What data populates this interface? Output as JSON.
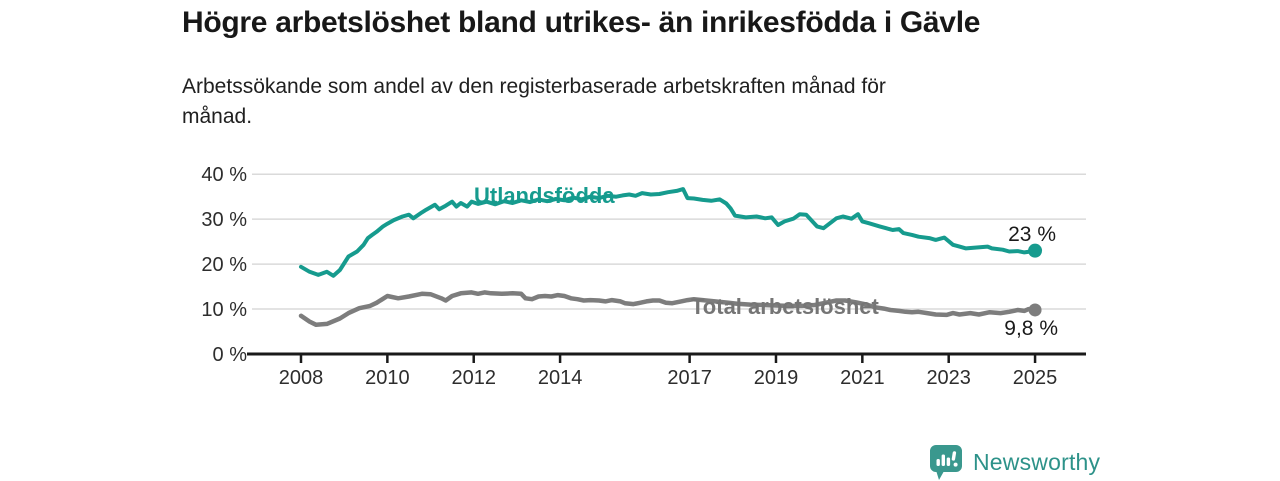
{
  "header": {
    "title": "Högre arbetslöshet bland utrikes- än inrikesfödda i Gävle",
    "subtitle_lines": [
      "Arbetssökande som andel av den registerbaserade arbetskraften månad för",
      "månad."
    ]
  },
  "chart_data": {
    "type": "line",
    "title": "Högre arbetslöshet bland utrikes- än inrikesfödda i Gävle",
    "subtitle": "Arbetssökande som andel av den registerbaserade arbetskraften månad för månad.",
    "unit": "%",
    "grid": "horizontal",
    "legend_position": "inline-labels",
    "xlim": [
      2006.9,
      2026.2
    ],
    "ylim": [
      0,
      40
    ],
    "x_ticks": [
      2008,
      2010,
      2012,
      2014,
      2017,
      2019,
      2021,
      2023,
      2025
    ],
    "x_tick_labels": [
      "2008",
      "2010",
      "2012",
      "2014",
      "2017",
      "2019",
      "2021",
      "2023",
      "2025"
    ],
    "y_ticks": [
      0,
      10,
      20,
      30,
      40
    ],
    "y_tick_labels": [
      "0 %",
      "10 %",
      "20 %",
      "30 %",
      "40 %"
    ],
    "series": [
      {
        "name": "Utlandsfödda",
        "color": "#169b8e",
        "end_label": "23 %",
        "end_value": 23,
        "points": [
          [
            2008,
            19.4
          ],
          [
            2008.2,
            18.3
          ],
          [
            2008.4,
            17.6
          ],
          [
            2008.6,
            18.3
          ],
          [
            2008.75,
            17.4
          ],
          [
            2008.9,
            18.7
          ],
          [
            2009.1,
            21.7
          ],
          [
            2009.3,
            22.8
          ],
          [
            2009.45,
            24.3
          ],
          [
            2009.55,
            25.8
          ],
          [
            2009.65,
            26.5
          ],
          [
            2009.75,
            27.2
          ],
          [
            2009.9,
            28.4
          ],
          [
            2010,
            29
          ],
          [
            2010.15,
            29.8
          ],
          [
            2010.35,
            30.6
          ],
          [
            2010.5,
            31
          ],
          [
            2010.6,
            30.2
          ],
          [
            2010.8,
            31.5
          ],
          [
            2010.9,
            32.1
          ],
          [
            2011.1,
            33.2
          ],
          [
            2011.2,
            32.2
          ],
          [
            2011.35,
            33
          ],
          [
            2011.5,
            33.9
          ],
          [
            2011.6,
            32.8
          ],
          [
            2011.7,
            33.6
          ],
          [
            2011.85,
            32.8
          ],
          [
            2011.95,
            33.9
          ],
          [
            2012.1,
            33.4
          ],
          [
            2012.3,
            33.9
          ],
          [
            2012.5,
            33.3
          ],
          [
            2012.7,
            34
          ],
          [
            2012.9,
            33.6
          ],
          [
            2013.1,
            34.2
          ],
          [
            2013.3,
            33.8
          ],
          [
            2013.5,
            34.4
          ],
          [
            2013.7,
            34
          ],
          [
            2013.9,
            34.5
          ],
          [
            2014.1,
            34.2
          ],
          [
            2014.3,
            34.8
          ],
          [
            2014.5,
            34.4
          ],
          [
            2014.7,
            35
          ],
          [
            2014.9,
            34.7
          ],
          [
            2015.1,
            35.2
          ],
          [
            2015.3,
            35
          ],
          [
            2015.45,
            35.3
          ],
          [
            2015.6,
            35.5
          ],
          [
            2015.75,
            35.2
          ],
          [
            2015.9,
            35.8
          ],
          [
            2016.1,
            35.5
          ],
          [
            2016.3,
            35.6
          ],
          [
            2016.5,
            36
          ],
          [
            2016.7,
            36.3
          ],
          [
            2016.85,
            36.7
          ],
          [
            2016.95,
            34.7
          ],
          [
            2017.1,
            34.6
          ],
          [
            2017.3,
            34.3
          ],
          [
            2017.5,
            34.1
          ],
          [
            2017.7,
            34.4
          ],
          [
            2017.85,
            33.5
          ],
          [
            2017.95,
            32.4
          ],
          [
            2018.05,
            30.8
          ],
          [
            2018.3,
            30.4
          ],
          [
            2018.55,
            30.6
          ],
          [
            2018.75,
            30.2
          ],
          [
            2018.9,
            30.4
          ],
          [
            2019.05,
            28.7
          ],
          [
            2019.2,
            29.5
          ],
          [
            2019.4,
            30.1
          ],
          [
            2019.55,
            31.1
          ],
          [
            2019.7,
            31
          ],
          [
            2019.95,
            28.4
          ],
          [
            2020.1,
            28
          ],
          [
            2020.4,
            30.2
          ],
          [
            2020.55,
            30.6
          ],
          [
            2020.75,
            30.1
          ],
          [
            2020.9,
            31.1
          ],
          [
            2021,
            29.5
          ],
          [
            2021.15,
            29.1
          ],
          [
            2021.4,
            28.4
          ],
          [
            2021.55,
            28
          ],
          [
            2021.7,
            27.6
          ],
          [
            2021.85,
            27.8
          ],
          [
            2021.95,
            26.9
          ],
          [
            2022.15,
            26.5
          ],
          [
            2022.3,
            26.1
          ],
          [
            2022.55,
            25.8
          ],
          [
            2022.7,
            25.4
          ],
          [
            2022.9,
            25.9
          ],
          [
            2023.1,
            24.3
          ],
          [
            2023.25,
            23.9
          ],
          [
            2023.4,
            23.5
          ],
          [
            2023.65,
            23.7
          ],
          [
            2023.9,
            23.9
          ],
          [
            2024,
            23.5
          ],
          [
            2024.25,
            23.2
          ],
          [
            2024.4,
            22.8
          ],
          [
            2024.6,
            22.9
          ],
          [
            2024.75,
            22.6
          ],
          [
            2024.9,
            22.8
          ],
          [
            2025,
            23
          ]
        ]
      },
      {
        "name": "Total arbetslöshet",
        "color": "#7d7d7d",
        "end_label": "9,8 %",
        "end_value": 9.8,
        "points": [
          [
            2008,
            8.5
          ],
          [
            2008.2,
            7.2
          ],
          [
            2008.35,
            6.5
          ],
          [
            2008.6,
            6.7
          ],
          [
            2008.9,
            7.9
          ],
          [
            2009.1,
            9.1
          ],
          [
            2009.35,
            10.2
          ],
          [
            2009.6,
            10.7
          ],
          [
            2009.75,
            11.4
          ],
          [
            2010,
            12.9
          ],
          [
            2010.25,
            12.4
          ],
          [
            2010.5,
            12.8
          ],
          [
            2010.8,
            13.4
          ],
          [
            2011,
            13.3
          ],
          [
            2011.25,
            12.4
          ],
          [
            2011.35,
            11.9
          ],
          [
            2011.5,
            12.9
          ],
          [
            2011.7,
            13.5
          ],
          [
            2011.95,
            13.7
          ],
          [
            2012.1,
            13.4
          ],
          [
            2012.25,
            13.7
          ],
          [
            2012.4,
            13.5
          ],
          [
            2012.65,
            13.4
          ],
          [
            2012.9,
            13.5
          ],
          [
            2013.1,
            13.4
          ],
          [
            2013.2,
            12.4
          ],
          [
            2013.35,
            12.2
          ],
          [
            2013.5,
            12.8
          ],
          [
            2013.65,
            12.9
          ],
          [
            2013.8,
            12.8
          ],
          [
            2013.95,
            13.1
          ],
          [
            2014.1,
            12.9
          ],
          [
            2014.25,
            12.4
          ],
          [
            2014.4,
            12.2
          ],
          [
            2014.55,
            11.9
          ],
          [
            2014.7,
            12
          ],
          [
            2014.9,
            11.9
          ],
          [
            2015.05,
            11.7
          ],
          [
            2015.2,
            12
          ],
          [
            2015.4,
            11.7
          ],
          [
            2015.5,
            11.3
          ],
          [
            2015.7,
            11.1
          ],
          [
            2015.85,
            11.4
          ],
          [
            2016,
            11.7
          ],
          [
            2016.15,
            11.9
          ],
          [
            2016.3,
            11.9
          ],
          [
            2016.45,
            11.4
          ],
          [
            2016.6,
            11.3
          ],
          [
            2016.8,
            11.7
          ],
          [
            2016.95,
            12
          ],
          [
            2017.1,
            12.2
          ],
          [
            2017.3,
            12
          ],
          [
            2017.5,
            11.8
          ],
          [
            2017.7,
            11.6
          ],
          [
            2017.9,
            11.4
          ],
          [
            2018.1,
            11.2
          ],
          [
            2018.4,
            11
          ],
          [
            2018.7,
            10.9
          ],
          [
            2019,
            10.8
          ],
          [
            2019.3,
            10.7
          ],
          [
            2019.6,
            10.7
          ],
          [
            2019.9,
            10.9
          ],
          [
            2020.1,
            11.3
          ],
          [
            2020.4,
            11.9
          ],
          [
            2020.6,
            11.9
          ],
          [
            2020.85,
            11.5
          ],
          [
            2021.1,
            11
          ],
          [
            2021.3,
            10.4
          ],
          [
            2021.5,
            10.1
          ],
          [
            2021.65,
            9.8
          ],
          [
            2021.85,
            9.6
          ],
          [
            2022,
            9.4
          ],
          [
            2022.15,
            9.3
          ],
          [
            2022.3,
            9.4
          ],
          [
            2022.5,
            9.1
          ],
          [
            2022.7,
            8.8
          ],
          [
            2022.95,
            8.7
          ],
          [
            2023.1,
            9.1
          ],
          [
            2023.25,
            8.8
          ],
          [
            2023.5,
            9.1
          ],
          [
            2023.7,
            8.8
          ],
          [
            2023.95,
            9.3
          ],
          [
            2024.2,
            9.1
          ],
          [
            2024.4,
            9.4
          ],
          [
            2024.6,
            9.8
          ],
          [
            2024.75,
            9.6
          ],
          [
            2024.85,
            10
          ],
          [
            2025,
            9.8
          ]
        ]
      }
    ]
  },
  "footer": {
    "brand": "Newsworthy",
    "logo_icon": "newsworthy-chart-bubble-icon"
  }
}
